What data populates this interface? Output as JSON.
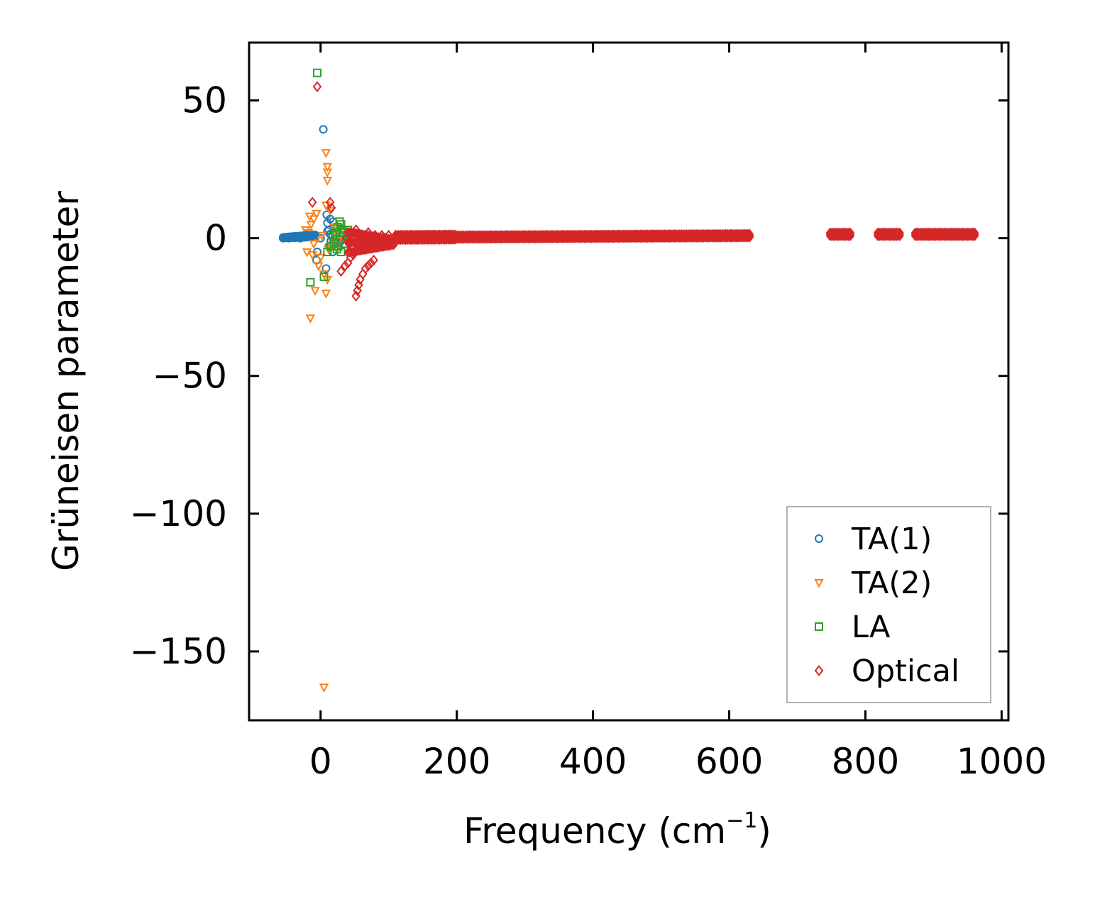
{
  "chart_data": {
    "type": "scatter",
    "title": "",
    "xlabel": "Frequency (cm",
    "xlabel_sup": "−1",
    "xlabel_close": ")",
    "ylabel": "Grüneisen parameter",
    "xlim": [
      -105,
      1010
    ],
    "ylim": [
      -175,
      71
    ],
    "xticks": [
      0,
      200,
      400,
      600,
      800,
      1000
    ],
    "xtick_labels": [
      "0",
      "200",
      "400",
      "600",
      "800",
      "1000"
    ],
    "yticks": [
      50,
      0,
      -50,
      -100,
      -150
    ],
    "ytick_labels": [
      "50",
      "0",
      "−50",
      "−100",
      "−150"
    ],
    "legend_position": "lower right",
    "series": [
      {
        "name": "TA(1)",
        "marker": "circle",
        "color": "#1f77b4",
        "points": [
          [
            -55,
            0
          ],
          [
            -50,
            0.1
          ],
          [
            -46,
            0
          ],
          [
            -42,
            0.2
          ],
          [
            -38,
            0.1
          ],
          [
            -35,
            0.3
          ],
          [
            -32,
            0.2
          ],
          [
            -30,
            0
          ],
          [
            -28,
            0.4
          ],
          [
            -26,
            0.5
          ],
          [
            -24,
            0.3
          ],
          [
            -22,
            0.6
          ],
          [
            -20,
            0.4
          ],
          [
            -18,
            0.8
          ],
          [
            -16,
            0.6
          ],
          [
            -14,
            1
          ],
          [
            -12,
            0.7
          ],
          [
            -10,
            1.2
          ],
          [
            0,
            0
          ],
          [
            4,
            39.5
          ],
          [
            9,
            8.5
          ],
          [
            10,
            5.5
          ],
          [
            12,
            3
          ],
          [
            14,
            1.5
          ],
          [
            15,
            -1
          ],
          [
            16,
            -3
          ],
          [
            18,
            -5
          ],
          [
            20,
            2
          ],
          [
            22,
            -2
          ],
          [
            25,
            0.5
          ],
          [
            28,
            -1.5
          ],
          [
            30,
            1
          ],
          [
            32,
            -0.5
          ],
          [
            -5,
            -5
          ],
          [
            -6,
            -8
          ],
          [
            8,
            -11
          ],
          [
            12,
            -3
          ],
          [
            10,
            2.5
          ],
          [
            18,
            6
          ],
          [
            24,
            -3
          ],
          [
            14,
            7
          ]
        ]
      },
      {
        "name": "TA(2)",
        "marker": "triangle-down",
        "color": "#ff7f0e",
        "points": [
          [
            5,
            -163
          ],
          [
            -15,
            -29
          ],
          [
            8,
            -20
          ],
          [
            -8,
            -19
          ],
          [
            10,
            -15
          ],
          [
            5,
            -13
          ],
          [
            -3,
            -10
          ],
          [
            0,
            -7
          ],
          [
            -12,
            -6
          ],
          [
            -20,
            -5
          ],
          [
            12,
            -4
          ],
          [
            16,
            -3
          ],
          [
            -10,
            -2
          ],
          [
            -5,
            0
          ],
          [
            2,
            1
          ],
          [
            -18,
            2
          ],
          [
            -22,
            3
          ],
          [
            -14,
            5
          ],
          [
            -10,
            7
          ],
          [
            -16,
            8
          ],
          [
            -6,
            9
          ],
          [
            14,
            10
          ],
          [
            8,
            12
          ],
          [
            10,
            21
          ],
          [
            10,
            24
          ],
          [
            10,
            26
          ],
          [
            8,
            31
          ],
          [
            18,
            -2
          ],
          [
            22,
            2
          ],
          [
            26,
            -1
          ],
          [
            30,
            1
          ],
          [
            20,
            4
          ],
          [
            24,
            -4
          ],
          [
            28,
            3
          ]
        ]
      },
      {
        "name": "LA",
        "marker": "square",
        "color": "#2ca02c",
        "points": [
          [
            -5,
            60
          ],
          [
            -15,
            -16
          ],
          [
            5,
            -14
          ],
          [
            10,
            -5
          ],
          [
            15,
            -3
          ],
          [
            20,
            -2
          ],
          [
            22,
            2
          ],
          [
            25,
            4
          ],
          [
            28,
            6
          ],
          [
            30,
            5
          ],
          [
            32,
            3
          ],
          [
            34,
            2
          ],
          [
            36,
            -2
          ],
          [
            38,
            1
          ],
          [
            40,
            3
          ],
          [
            42,
            -1
          ],
          [
            18,
            1
          ],
          [
            24,
            -4
          ],
          [
            26,
            -3
          ],
          [
            30,
            -5
          ]
        ]
      },
      {
        "name": "Optical",
        "marker": "diamond",
        "color": "#d62728",
        "points": [
          [
            -5,
            55
          ],
          [
            -12,
            13
          ],
          [
            14,
            13
          ],
          [
            16,
            11
          ],
          [
            52,
            -21
          ],
          [
            54,
            -19
          ],
          [
            56,
            -17
          ],
          [
            58,
            -15
          ],
          [
            62,
            -13
          ],
          [
            66,
            -11
          ],
          [
            70,
            -10
          ],
          [
            74,
            -9
          ],
          [
            78,
            -8
          ],
          [
            30,
            -12
          ],
          [
            36,
            -10
          ],
          [
            40,
            -9
          ],
          [
            44,
            -7
          ],
          [
            48,
            -6
          ],
          [
            50,
            -5
          ],
          [
            46,
            -3
          ],
          [
            42,
            -2
          ],
          [
            38,
            0
          ],
          [
            45,
            2
          ],
          [
            52,
            3
          ],
          [
            55,
            -2
          ],
          [
            60,
            1
          ],
          [
            65,
            -4
          ],
          [
            70,
            2
          ],
          [
            75,
            -1
          ],
          [
            80,
            1
          ],
          [
            85,
            -2
          ],
          [
            90,
            1
          ],
          [
            95,
            0
          ],
          [
            100,
            1
          ],
          [
            110,
            0
          ],
          [
            120,
            1
          ],
          [
            130,
            0
          ],
          [
            140,
            0.5
          ],
          [
            160,
            0
          ],
          [
            180,
            1
          ],
          [
            200,
            0.5
          ],
          [
            220,
            1
          ],
          [
            240,
            0.5
          ],
          [
            260,
            0.8
          ],
          [
            280,
            0.5
          ],
          [
            300,
            0.3
          ],
          [
            320,
            0.5
          ],
          [
            340,
            0.3
          ],
          [
            360,
            0.5
          ],
          [
            380,
            0.4
          ],
          [
            400,
            0.5
          ],
          [
            420,
            0.5
          ],
          [
            440,
            0.6
          ],
          [
            460,
            0.5
          ],
          [
            480,
            0.7
          ],
          [
            500,
            0.6
          ],
          [
            520,
            0.8
          ],
          [
            540,
            0.7
          ],
          [
            560,
            0.9
          ],
          [
            580,
            0.8
          ],
          [
            600,
            1
          ],
          [
            620,
            0.9
          ],
          [
            630,
            0.8
          ],
          [
            750,
            1.2
          ],
          [
            760,
            1.3
          ],
          [
            770,
            1.2
          ],
          [
            775,
            1.1
          ],
          [
            820,
            1.5
          ],
          [
            830,
            1.4
          ],
          [
            840,
            1.5
          ],
          [
            850,
            1.4
          ],
          [
            875,
            1.5
          ],
          [
            890,
            1.4
          ],
          [
            905,
            1.5
          ],
          [
            920,
            1.4
          ],
          [
            935,
            1.5
          ],
          [
            950,
            1.4
          ],
          [
            960,
            1.3
          ]
        ]
      }
    ]
  }
}
